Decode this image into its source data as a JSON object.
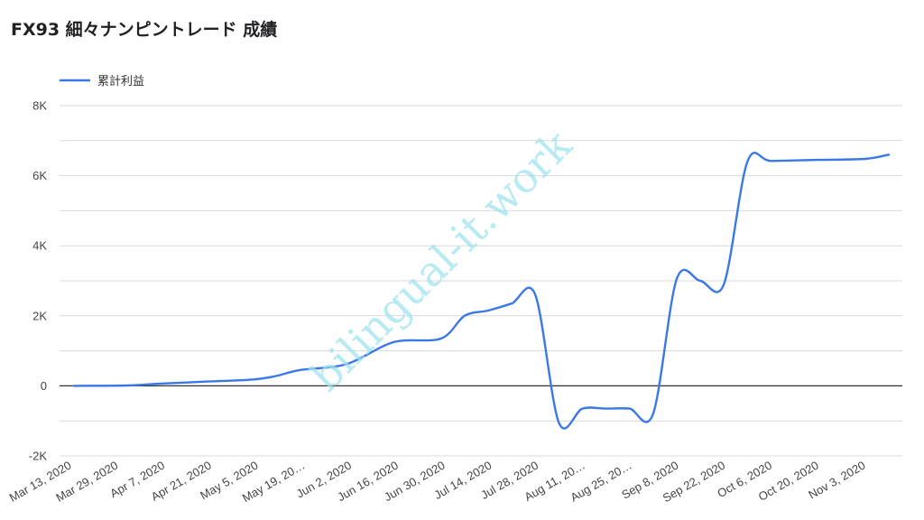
{
  "colors": {
    "series": "#3b78e7",
    "grid": "#d9d9d9",
    "zero": "#333333",
    "watermark": "#9fe3ee"
  },
  "watermark": "bilingual-it.work",
  "chart_data": {
    "type": "line",
    "title": "FX93 細々ナンピントレード 成績",
    "legend_position": "top-left",
    "grid": true,
    "ylim": [
      -2000,
      8000
    ],
    "y_ticks": [
      {
        "value": -2000,
        "label": "-2K"
      },
      {
        "value": 0,
        "label": "0"
      },
      {
        "value": 2000,
        "label": "2K"
      },
      {
        "value": 4000,
        "label": "4K"
      },
      {
        "value": 6000,
        "label": "6K"
      },
      {
        "value": 8000,
        "label": "8K"
      }
    ],
    "x_tick_labels": [
      "Mar 13, 2020",
      "Mar 29, 2020",
      "Apr 7, 2020",
      "Apr 21, 2020",
      "May 5, 2020",
      "May 19, 20…",
      "Jun 2, 2020",
      "Jun 16, 2020",
      "Jun 30, 2020",
      "Jul 14, 2020",
      "Jul 28, 2020",
      "Aug 11, 20…",
      "Aug 25, 20…",
      "Sep 8, 2020",
      "Sep 22, 2020",
      "Oct 6, 2020",
      "Oct 20, 2020",
      "Nov 3, 2020"
    ],
    "series": [
      {
        "name": "累計利益",
        "points": [
          [
            "Mar 13, 2020",
            0
          ],
          [
            "Mar 29, 2020",
            10
          ],
          [
            "Apr 7, 2020",
            60
          ],
          [
            "Apr 21, 2020",
            120
          ],
          [
            "May 5, 2020",
            180
          ],
          [
            "May 12, 2020",
            280
          ],
          [
            "May 19, 2020",
            450
          ],
          [
            "Jun 2, 2020",
            620
          ],
          [
            "Jun 16, 2020",
            1250
          ],
          [
            "Jun 30, 2020",
            1350
          ],
          [
            "Jul 7, 2020",
            2000
          ],
          [
            "Jul 14, 2020",
            2150
          ],
          [
            "Jul 21, 2020",
            2350
          ],
          [
            "Jul 28, 2020",
            2600
          ],
          [
            "Aug 4, 2020",
            -1050
          ],
          [
            "Aug 11, 2020",
            -650
          ],
          [
            "Aug 18, 2020",
            -650
          ],
          [
            "Aug 25, 2020",
            -650
          ],
          [
            "Sep 1, 2020",
            -800
          ],
          [
            "Sep 8, 2020",
            3050
          ],
          [
            "Sep 15, 2020",
            3000
          ],
          [
            "Sep 22, 2020",
            2900
          ],
          [
            "Sep 29, 2020",
            6400
          ],
          [
            "Oct 6, 2020",
            6420
          ],
          [
            "Oct 20, 2020",
            6450
          ],
          [
            "Nov 3, 2020",
            6480
          ],
          [
            "Nov 10, 2020",
            6600
          ]
        ]
      }
    ]
  }
}
